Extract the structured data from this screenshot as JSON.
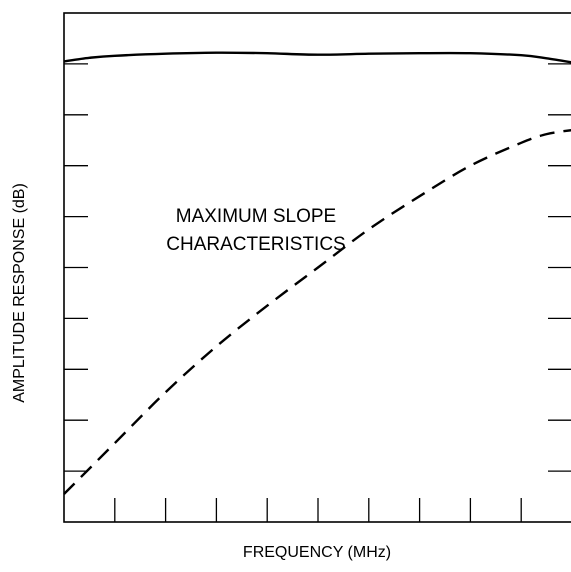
{
  "chart_data": {
    "type": "line",
    "title": "",
    "xlabel": "FREQUENCY (MHz)",
    "ylabel": "AMPLITUDE RESPONSE (dB)",
    "annotation": [
      "MAXIMUM SLOPE",
      "CHARACTERISTICS"
    ],
    "xlim": [
      0,
      10
    ],
    "ylim": [
      0,
      10
    ],
    "x_ticks": 10,
    "y_ticks": 9,
    "tick_labels_shown": false,
    "grid": false,
    "legend": "none",
    "series": [
      {
        "style": "solid",
        "color": "#000000",
        "x": [
          0,
          0.5,
          1,
          2,
          3,
          4,
          5,
          6,
          7,
          8,
          9,
          9.5,
          10
        ],
        "y": [
          9.05,
          9.12,
          9.16,
          9.2,
          9.22,
          9.21,
          9.18,
          9.2,
          9.21,
          9.21,
          9.17,
          9.11,
          9.03
        ]
      },
      {
        "style": "dashed",
        "color": "#000000",
        "x": [
          0,
          1,
          2,
          3,
          4,
          5,
          6,
          7,
          8,
          9,
          9.5,
          10
        ],
        "y": [
          0.55,
          1.55,
          2.55,
          3.45,
          4.25,
          5.0,
          5.75,
          6.4,
          7.0,
          7.45,
          7.62,
          7.7
        ]
      }
    ]
  }
}
